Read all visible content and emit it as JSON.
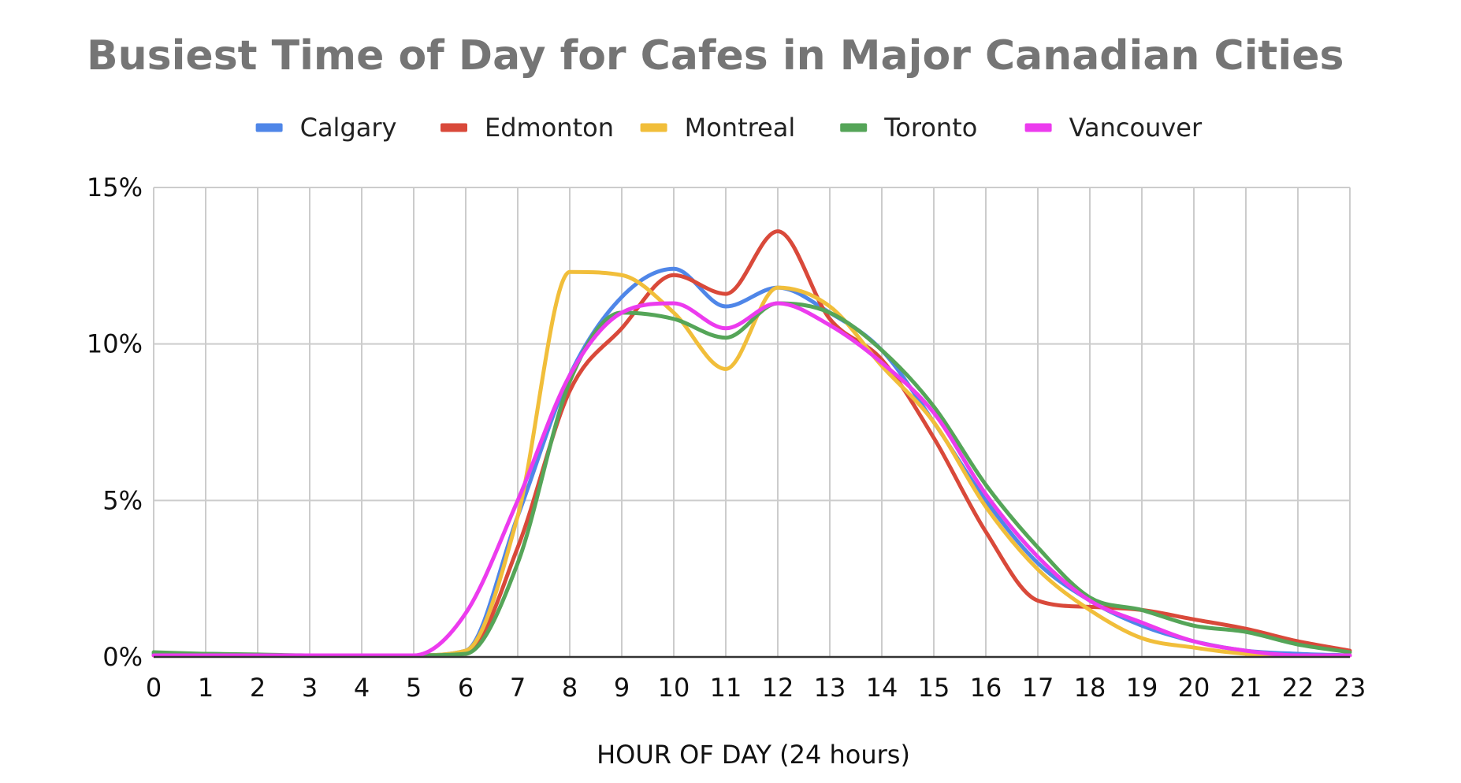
{
  "chart_data": {
    "type": "line",
    "title": "Busiest Time of Day for Cafes in Major Canadian Cities",
    "xlabel": "HOUR OF DAY (24 hours)",
    "ylabel": "",
    "x": [
      0,
      1,
      2,
      3,
      4,
      5,
      6,
      7,
      8,
      9,
      10,
      11,
      12,
      13,
      14,
      15,
      16,
      17,
      18,
      19,
      20,
      21,
      22,
      23
    ],
    "x_tick_labels": [
      "0",
      "1",
      "2",
      "3",
      "4",
      "5",
      "6",
      "7",
      "8",
      "9",
      "10",
      "11",
      "12",
      "13",
      "14",
      "15",
      "16",
      "17",
      "18",
      "19",
      "20",
      "21",
      "22",
      "23"
    ],
    "xlim": [
      0,
      23
    ],
    "ylim": [
      0,
      15
    ],
    "y_ticks": [
      0,
      5,
      10,
      15
    ],
    "y_tick_labels": [
      "0%",
      "5%",
      "10%",
      "15%"
    ],
    "legend_position": "top",
    "grid": true,
    "series": [
      {
        "name": "Calgary",
        "color": "#4F86E8",
        "values": [
          0.1,
          0.1,
          0.05,
          0.05,
          0.05,
          0.05,
          0.2,
          4.5,
          9.0,
          11.5,
          12.4,
          11.2,
          11.8,
          11.0,
          9.8,
          7.5,
          5.0,
          3.0,
          1.8,
          1.0,
          0.5,
          0.2,
          0.1,
          0.05
        ]
      },
      {
        "name": "Edmonton",
        "color": "#D9493A",
        "values": [
          0.05,
          0.05,
          0.05,
          0.05,
          0.05,
          0.05,
          0.1,
          3.5,
          8.5,
          10.5,
          12.2,
          11.6,
          13.6,
          10.8,
          9.5,
          7.0,
          4.0,
          1.8,
          1.6,
          1.5,
          1.2,
          0.9,
          0.5,
          0.2
        ]
      },
      {
        "name": "Montreal",
        "color": "#F1BE3A",
        "values": [
          0.05,
          0.05,
          0.05,
          0.05,
          0.05,
          0.05,
          0.2,
          4.5,
          12.3,
          12.2,
          11.0,
          9.2,
          11.8,
          11.2,
          9.3,
          7.5,
          4.8,
          2.8,
          1.5,
          0.6,
          0.3,
          0.1,
          0.05,
          0.05
        ]
      },
      {
        "name": "Toronto",
        "color": "#55A558",
        "values": [
          0.15,
          0.1,
          0.08,
          0.05,
          0.05,
          0.05,
          0.1,
          3.0,
          8.8,
          11.0,
          10.8,
          10.2,
          11.3,
          11.0,
          9.8,
          8.0,
          5.5,
          3.5,
          1.9,
          1.5,
          1.0,
          0.8,
          0.4,
          0.15
        ]
      },
      {
        "name": "Vancouver",
        "color": "#EC3BEE",
        "values": [
          0.05,
          0.05,
          0.05,
          0.05,
          0.05,
          0.05,
          1.4,
          5.0,
          9.0,
          11.0,
          11.3,
          10.5,
          11.3,
          10.6,
          9.4,
          7.8,
          5.2,
          3.2,
          1.8,
          1.1,
          0.5,
          0.2,
          0.05,
          0.05
        ]
      }
    ]
  }
}
